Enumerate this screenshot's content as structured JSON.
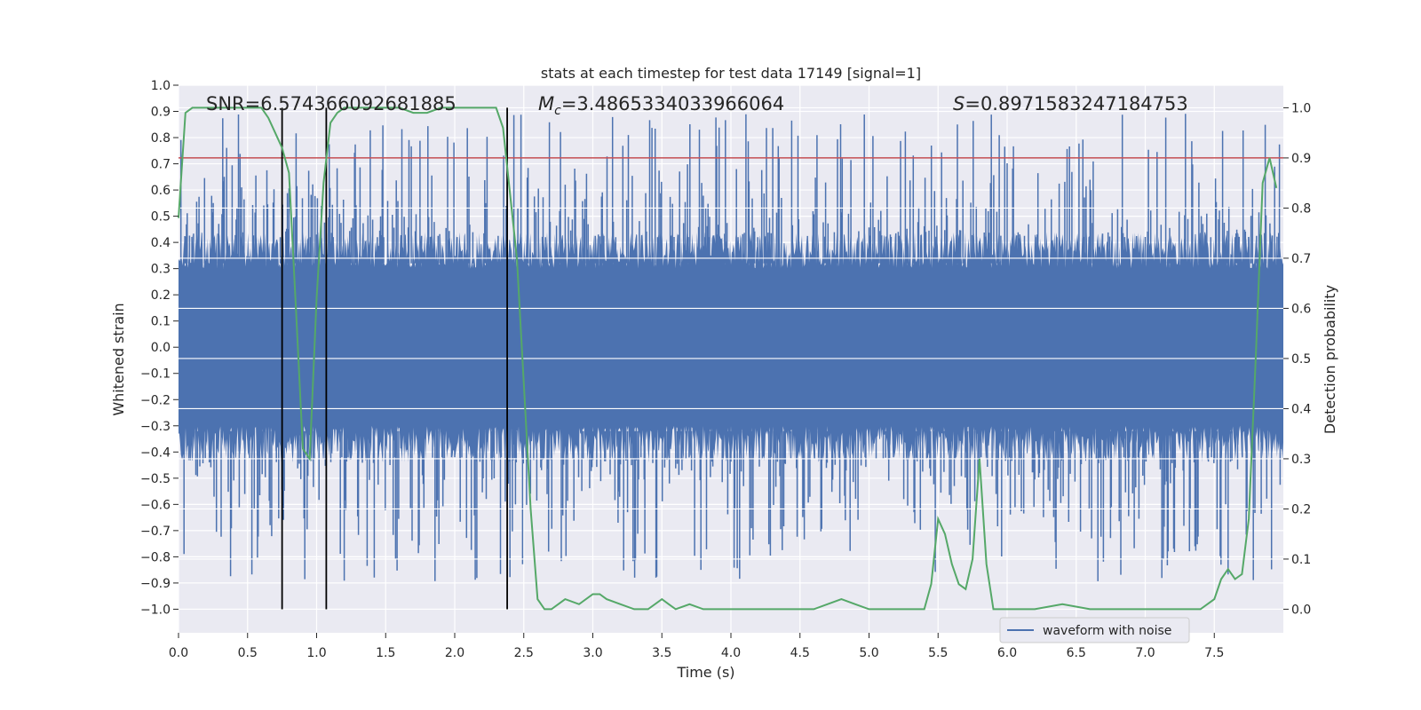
{
  "chart_data": {
    "type": "line",
    "title": "stats at each timestep for test data 17149 [signal=1]",
    "xlabel": "Time (s)",
    "ylabel": "Whitened strain",
    "ylabel_right": "Detection probability",
    "xlim": [
      0.0,
      8.0
    ],
    "ylim": [
      -1.09,
      1.0
    ],
    "ylim_right": [
      -0.047,
      1.045
    ],
    "x_ticks": [
      "0.0",
      "0.5",
      "1.0",
      "1.5",
      "2.0",
      "2.5",
      "3.0",
      "3.5",
      "4.0",
      "4.5",
      "5.0",
      "5.5",
      "6.0",
      "6.5",
      "7.0",
      "7.5"
    ],
    "y_ticks": [
      "1.0",
      "0.9",
      "0.8",
      "0.7",
      "0.6",
      "0.5",
      "0.4",
      "0.3",
      "0.2",
      "0.1",
      "0.0",
      "−0.1",
      "−0.2",
      "−0.3",
      "−0.4",
      "−0.5",
      "−0.6",
      "−0.7",
      "−0.8",
      "−0.9",
      "−1.0"
    ],
    "y_ticks_right": [
      "1.0",
      "0.9",
      "0.8",
      "0.7",
      "0.6",
      "0.5",
      "0.4",
      "0.3",
      "0.2",
      "0.1",
      "0.0"
    ],
    "annotations": {
      "snr": "SNR=6.574366092681885",
      "mc_symbol": "M",
      "mc_sub": "c",
      "mc_value": "=3.4865334033966064",
      "s_symbol": "S",
      "s_value": "=0.8971583247184753"
    },
    "legend": {
      "position": "lower-right",
      "entries": [
        "waveform with noise"
      ]
    },
    "threshold_right": 0.9,
    "vertical_markers_s": [
      0.75,
      1.07,
      2.38
    ],
    "waveform": {
      "name": "waveform with noise",
      "color": "#4c72b0",
      "description": "dense whitened strain noise, core amplitude approx ±0.42, spikes up to ±0.9",
      "core_amplitude": 0.42,
      "max_amplitude": 0.9
    },
    "probability": {
      "name": "detection probability",
      "color": "#55a868",
      "x": [
        0.0,
        0.05,
        0.1,
        0.2,
        0.3,
        0.4,
        0.5,
        0.6,
        0.65,
        0.7,
        0.75,
        0.8,
        0.85,
        0.9,
        0.95,
        1.0,
        1.05,
        1.1,
        1.15,
        1.2,
        1.3,
        1.4,
        1.5,
        1.6,
        1.7,
        1.8,
        1.9,
        2.0,
        2.1,
        2.2,
        2.3,
        2.35,
        2.4,
        2.45,
        2.5,
        2.55,
        2.6,
        2.65,
        2.7,
        2.8,
        2.9,
        3.0,
        3.05,
        3.1,
        3.2,
        3.3,
        3.4,
        3.5,
        3.55,
        3.6,
        3.7,
        3.8,
        3.9,
        4.0,
        4.2,
        4.4,
        4.6,
        4.8,
        4.9,
        5.0,
        5.2,
        5.4,
        5.45,
        5.5,
        5.55,
        5.6,
        5.65,
        5.7,
        5.75,
        5.8,
        5.85,
        5.9,
        6.0,
        6.2,
        6.4,
        6.6,
        6.8,
        7.0,
        7.2,
        7.4,
        7.5,
        7.55,
        7.6,
        7.65,
        7.7,
        7.75,
        7.8,
        7.85,
        7.9,
        7.95
      ],
      "y": [
        0.78,
        0.99,
        1.0,
        1.0,
        1.0,
        1.0,
        1.0,
        1.0,
        0.98,
        0.95,
        0.92,
        0.87,
        0.6,
        0.32,
        0.3,
        0.62,
        0.85,
        0.97,
        0.99,
        1.0,
        1.0,
        1.0,
        1.0,
        1.0,
        0.99,
        0.99,
        1.0,
        1.0,
        1.0,
        1.0,
        1.0,
        0.96,
        0.83,
        0.7,
        0.45,
        0.2,
        0.02,
        0.0,
        0.0,
        0.02,
        0.01,
        0.03,
        0.03,
        0.02,
        0.01,
        0.0,
        0.0,
        0.02,
        0.01,
        0.0,
        0.01,
        0.0,
        0.0,
        0.0,
        0.0,
        0.0,
        0.0,
        0.02,
        0.01,
        0.0,
        0.0,
        0.0,
        0.05,
        0.18,
        0.15,
        0.09,
        0.05,
        0.04,
        0.1,
        0.3,
        0.09,
        0.0,
        0.0,
        0.0,
        0.01,
        0.0,
        0.0,
        0.0,
        0.0,
        0.0,
        0.02,
        0.06,
        0.08,
        0.06,
        0.07,
        0.18,
        0.5,
        0.85,
        0.9,
        0.84
      ]
    }
  }
}
